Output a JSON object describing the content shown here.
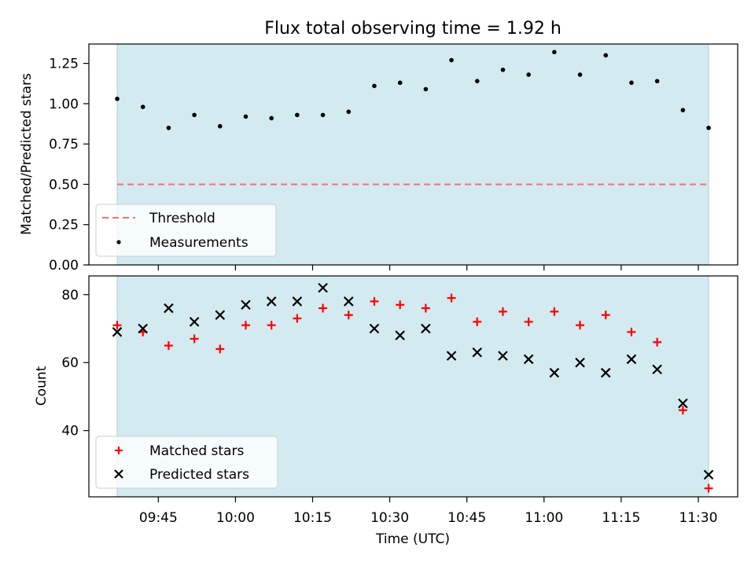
{
  "chart_data": [
    {
      "type": "scatter",
      "title": "Flux total observing time = 1.92 h",
      "xlabel": "",
      "ylabel": "Matched/Predicted stars",
      "ylim": [
        0.0,
        1.37
      ],
      "yticks": [
        "0.00",
        "0.25",
        "0.50",
        "0.75",
        "1.00",
        "1.25"
      ],
      "shaded_span": [
        "09:37",
        "11:32"
      ],
      "threshold": 0.5,
      "legend": {
        "placement": "lower-left",
        "entries": [
          "Threshold",
          "Measurements"
        ]
      },
      "x": [
        "09:37",
        "09:42",
        "09:47",
        "09:52",
        "09:57",
        "10:02",
        "10:07",
        "10:12",
        "10:17",
        "10:22",
        "10:27",
        "10:32",
        "10:37",
        "10:42",
        "10:47",
        "10:52",
        "10:57",
        "11:02",
        "11:07",
        "11:12",
        "11:17",
        "11:22",
        "11:27",
        "11:32"
      ],
      "series": [
        {
          "name": "Measurements",
          "values": [
            1.03,
            0.98,
            0.85,
            0.93,
            0.86,
            0.92,
            0.91,
            0.93,
            0.93,
            0.95,
            1.11,
            1.13,
            1.09,
            1.27,
            1.14,
            1.21,
            1.18,
            1.32,
            1.18,
            1.3,
            1.13,
            1.14,
            0.96,
            0.85
          ]
        }
      ],
      "colors": {
        "threshold": "#f07070",
        "measurements": "#000000",
        "span": "#d3eaf0"
      }
    },
    {
      "type": "scatter",
      "xlabel": "Time (UTC)",
      "ylabel": "Count",
      "ylim": [
        20.5,
        85.5
      ],
      "yticks": [
        "40",
        "60",
        "80"
      ],
      "xticks": [
        "09:45",
        "10:00",
        "10:15",
        "10:30",
        "10:45",
        "11:00",
        "11:15",
        "11:30"
      ],
      "shaded_span": [
        "09:37",
        "11:32"
      ],
      "legend": {
        "placement": "lower-left",
        "entries": [
          "Matched stars",
          "Predicted stars"
        ]
      },
      "x": [
        "09:37",
        "09:42",
        "09:47",
        "09:52",
        "09:57",
        "10:02",
        "10:07",
        "10:12",
        "10:17",
        "10:22",
        "10:27",
        "10:32",
        "10:37",
        "10:42",
        "10:47",
        "10:52",
        "10:57",
        "11:02",
        "11:07",
        "11:12",
        "11:17",
        "11:22",
        "11:27",
        "11:32"
      ],
      "series": [
        {
          "name": "Matched stars",
          "marker": "plus",
          "values": [
            71,
            69,
            65,
            67,
            64,
            71,
            71,
            73,
            76,
            74,
            78,
            77,
            76,
            79,
            72,
            75,
            72,
            75,
            71,
            74,
            69,
            66,
            46,
            23
          ]
        },
        {
          "name": "Predicted stars",
          "marker": "x",
          "values": [
            69,
            70,
            76,
            72,
            74,
            77,
            78,
            78,
            82,
            78,
            70,
            68,
            70,
            62,
            63,
            62,
            61,
            57,
            60,
            57,
            61,
            58,
            48,
            27
          ]
        }
      ],
      "colors": {
        "matched": "#ff0000",
        "predicted": "#000000",
        "span": "#d3eaf0"
      }
    }
  ]
}
